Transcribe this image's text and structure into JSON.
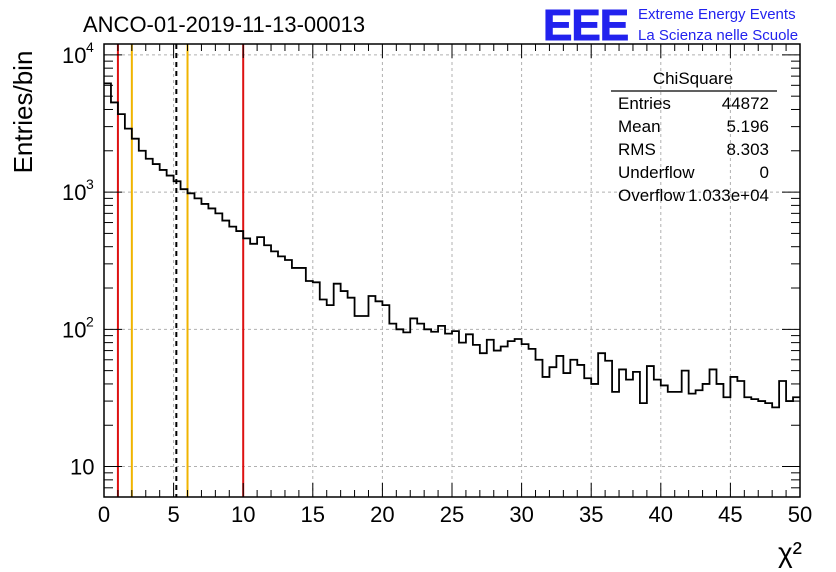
{
  "header": {
    "run_title": "ANCO-01-2019-11-13-00013",
    "logo_text": "EEE",
    "project_line1": "Extreme Energy Events",
    "project_line2": "La Scienza nelle Scuole"
  },
  "stats_box": {
    "title": "ChiSquare",
    "rows": [
      {
        "label": "Entries",
        "value": "44872"
      },
      {
        "label": "Mean",
        "value": "5.196"
      },
      {
        "label": "RMS",
        "value": "8.303"
      },
      {
        "label": "Underflow",
        "value": "0"
      },
      {
        "label": "Overflow",
        "value": "1.033e+04"
      }
    ]
  },
  "colors": {
    "histogram": "#000000",
    "red_line": "#dd1111",
    "yellow_line": "#f0b400",
    "mean_line": "#000000",
    "grid": "#b0b0b0",
    "logo": "#2222ee"
  },
  "chart_data": {
    "type": "histogram",
    "title": "ANCO-01-2019-11-13-00013",
    "xlabel": "χ²",
    "ylabel": "Entries/bin",
    "xlim": [
      0,
      50
    ],
    "ylim": [
      6,
      12000
    ],
    "yscale": "log",
    "grid": true,
    "bin_width": 0.5,
    "x_ticks": [
      0,
      5,
      10,
      15,
      20,
      25,
      30,
      35,
      40,
      45,
      50
    ],
    "x_tick_labels": [
      "0",
      "5",
      "10",
      "15",
      "20",
      "25",
      "30",
      "35",
      "40",
      "45",
      "50"
    ],
    "y_ticks": [
      {
        "value": 10,
        "base": "10",
        "exp": ""
      },
      {
        "value": 100,
        "base": "10",
        "exp": "2"
      },
      {
        "value": 1000,
        "base": "10",
        "exp": "3"
      },
      {
        "value": 10000,
        "base": "10",
        "exp": "4"
      }
    ],
    "bin_values": [
      6200,
      4500,
      3700,
      2900,
      2450,
      2000,
      1750,
      1600,
      1450,
      1320,
      1200,
      1050,
      980,
      900,
      820,
      760,
      700,
      620,
      560,
      520,
      460,
      420,
      470,
      410,
      370,
      340,
      320,
      280,
      280,
      225,
      220,
      165,
      150,
      215,
      190,
      170,
      125,
      125,
      175,
      160,
      150,
      110,
      100,
      95,
      120,
      110,
      100,
      96,
      106,
      93,
      97,
      80,
      92,
      77,
      67,
      84,
      70,
      75,
      82,
      85,
      78,
      72,
      60,
      45,
      53,
      64,
      48,
      60,
      55,
      44,
      40,
      67,
      59,
      35,
      51,
      43,
      49,
      29,
      54,
      43,
      39,
      35,
      35,
      50,
      34,
      36,
      40,
      51,
      40,
      32,
      45,
      42,
      32,
      31,
      30,
      29,
      27,
      42,
      30,
      32
    ],
    "reference_lines": [
      {
        "x": 1,
        "color": "red",
        "style": "solid"
      },
      {
        "x": 2,
        "color": "yellow",
        "style": "solid"
      },
      {
        "x": 5.196,
        "color": "black",
        "style": "dashed"
      },
      {
        "x": 6,
        "color": "yellow",
        "style": "solid"
      },
      {
        "x": 10,
        "color": "red",
        "style": "solid"
      }
    ]
  }
}
